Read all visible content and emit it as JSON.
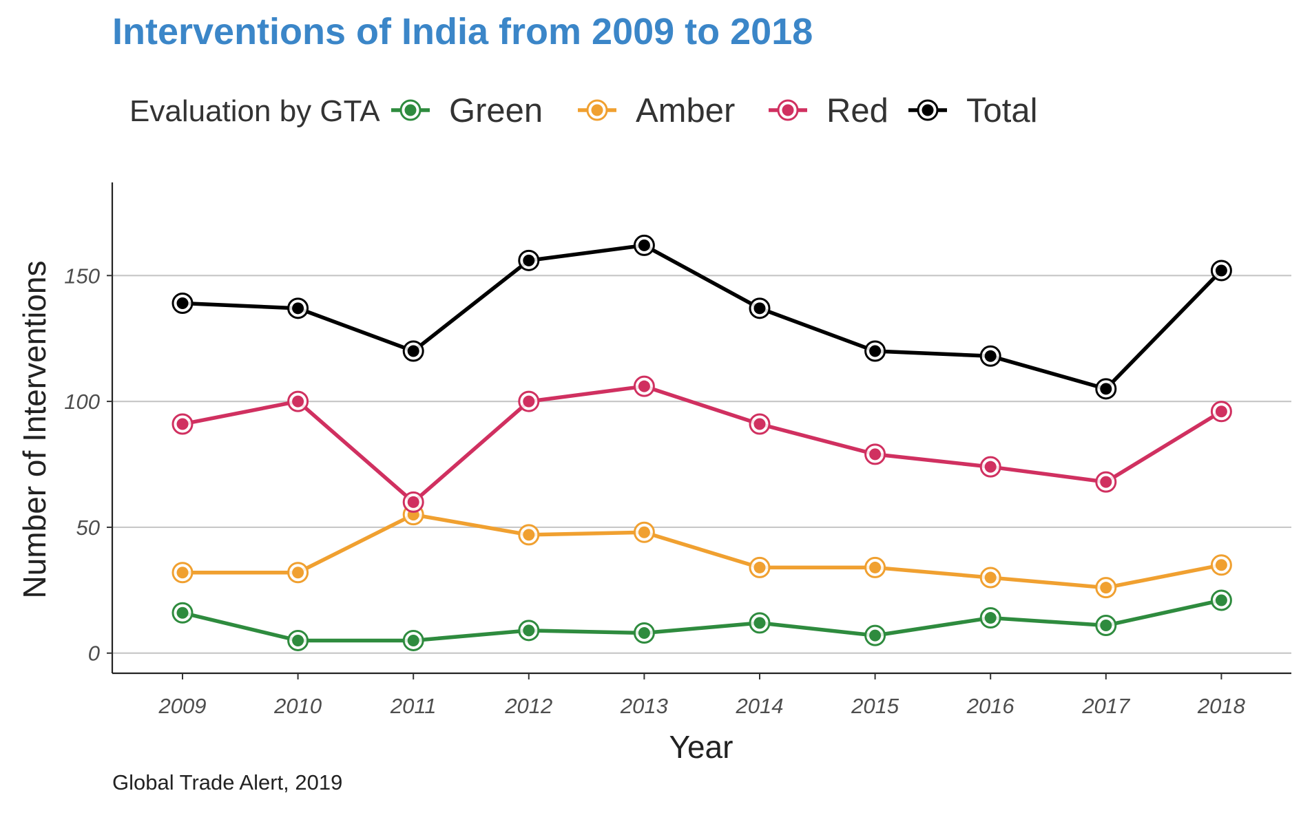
{
  "chart_data": {
    "type": "line",
    "title": "Interventions of India from 2009 to 2018",
    "title_color": "#3b86c8",
    "xlabel": "Year",
    "ylabel": "Number of Interventions",
    "caption": "Global Trade Alert, 2019",
    "legend_title": "Evaluation by GTA",
    "legend_position": "top",
    "grid": "horizontal major",
    "x": [
      2009,
      2010,
      2011,
      2012,
      2013,
      2014,
      2015,
      2016,
      2017,
      2018
    ],
    "x_tick_labels": [
      "2009",
      "2010",
      "2011",
      "2012",
      "2013",
      "2014",
      "2015",
      "2016",
      "2017",
      "2018"
    ],
    "ylim": [
      -8,
      187
    ],
    "y_ticks": [
      0,
      50,
      100,
      150
    ],
    "y_tick_labels": [
      "0",
      "50",
      "100",
      "150"
    ],
    "series": [
      {
        "name": "Green",
        "color": "#2e8b3e",
        "values": [
          16,
          5,
          5,
          9,
          8,
          12,
          7,
          14,
          11,
          21
        ]
      },
      {
        "name": "Amber",
        "color": "#f0a030",
        "values": [
          32,
          32,
          55,
          47,
          48,
          34,
          34,
          30,
          26,
          35
        ]
      },
      {
        "name": "Red",
        "color": "#d03060",
        "values": [
          91,
          100,
          60,
          100,
          106,
          91,
          79,
          74,
          68,
          96
        ]
      },
      {
        "name": "Total",
        "color": "#000000",
        "values": [
          139,
          137,
          120,
          156,
          162,
          137,
          120,
          118,
          105,
          152
        ]
      }
    ]
  }
}
